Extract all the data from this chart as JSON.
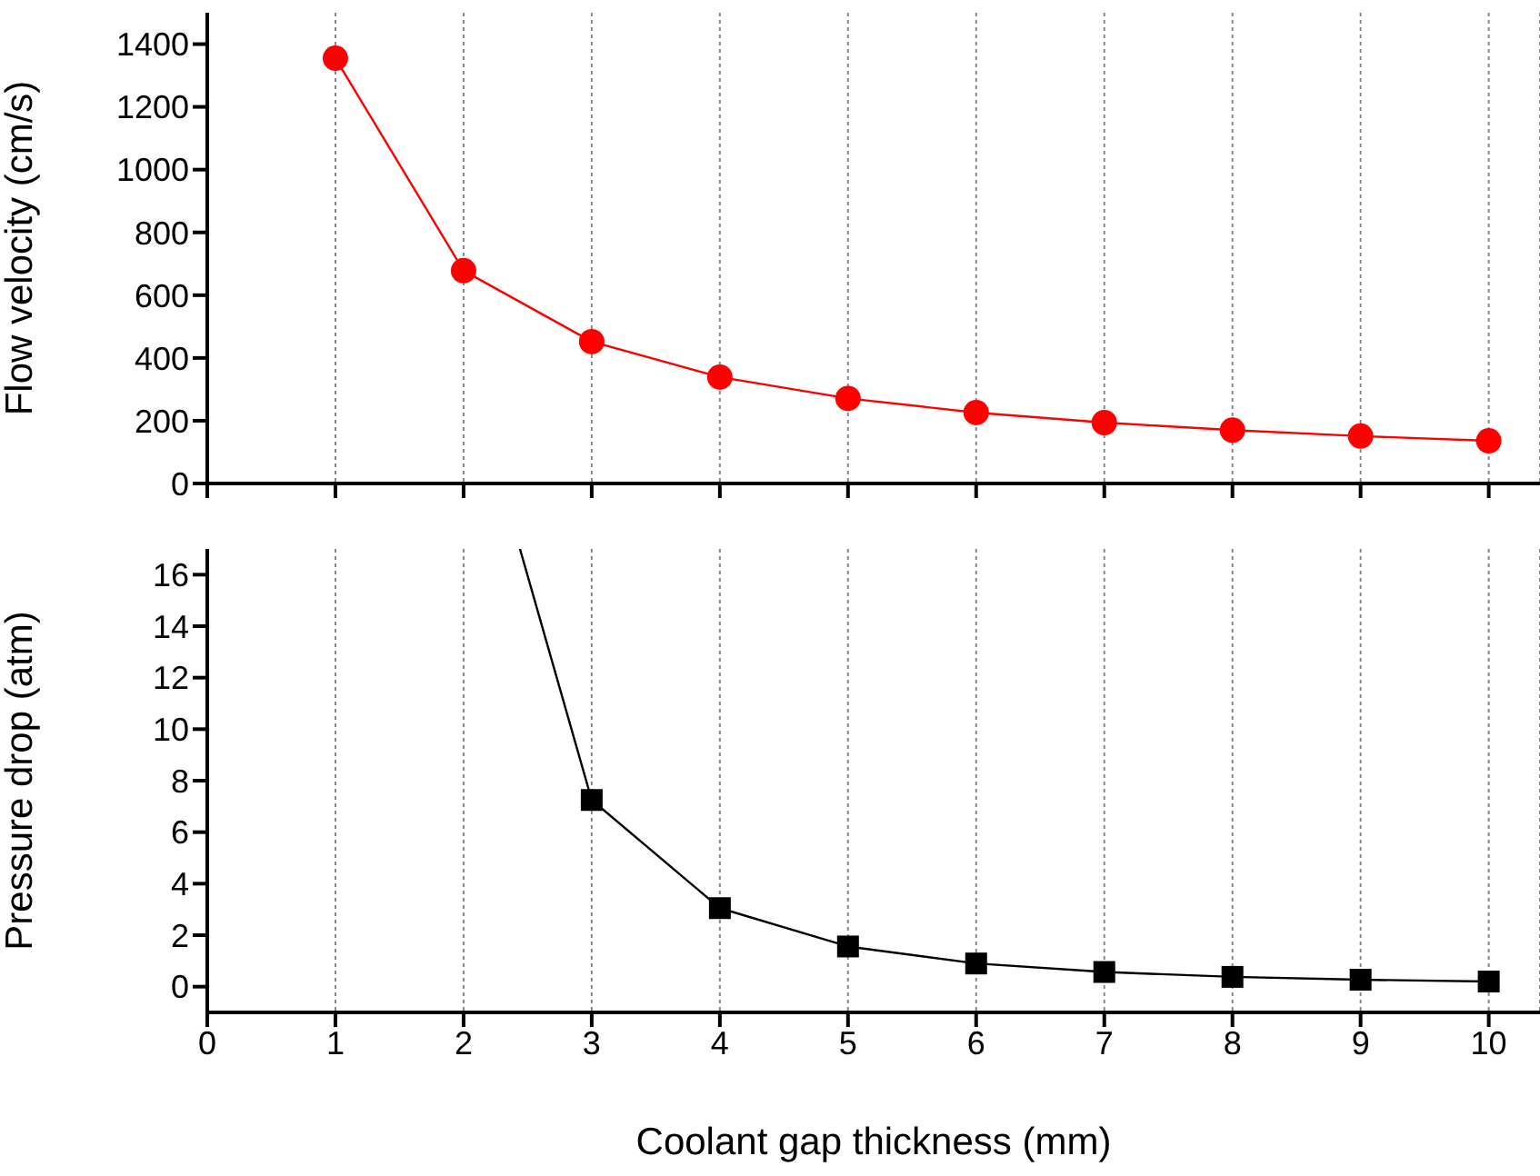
{
  "chart_data": [
    {
      "type": "line",
      "ylabel": "Flow velocity (cm/s)",
      "x": [
        1,
        2,
        3,
        4,
        5,
        6,
        7,
        8,
        9,
        10
      ],
      "xlim": [
        0,
        10.4
      ],
      "xticks": [
        0,
        1,
        2,
        3,
        4,
        5,
        6,
        7,
        8,
        9,
        10
      ],
      "ylim": [
        0,
        1500
      ],
      "yticks": [
        0,
        200,
        400,
        600,
        800,
        1000,
        1200,
        1400
      ],
      "grid": "x",
      "tick_labels": "y",
      "marker": "circle",
      "line_style": "solid",
      "series": [
        {
          "color": "#ff0000",
          "values": [
            1355,
            678,
            452,
            339,
            271,
            226,
            194,
            170,
            151,
            136
          ]
        }
      ]
    },
    {
      "type": "line",
      "xlabel": "Coolant gap thickness (mm)",
      "ylabel": "Pressure drop (atm)",
      "xlim": [
        0,
        10.4
      ],
      "xticks": [
        0,
        1,
        2,
        3,
        4,
        5,
        6,
        7,
        8,
        9,
        10
      ],
      "ylim": [
        -1,
        17
      ],
      "yticks": [
        0,
        2,
        4,
        6,
        8,
        10,
        12,
        14,
        16
      ],
      "grid": "x",
      "marker": "square",
      "line_style": "solid",
      "series": [
        {
          "color": "#000000",
          "x": [
            3,
            4,
            5,
            6,
            7,
            8,
            9,
            10
          ],
          "values": [
            7.25,
            3.05,
            1.56,
            0.9,
            0.57,
            0.38,
            0.27,
            0.2
          ]
        },
        {
          "color": "#000000",
          "x": [
            2.44,
            3
          ],
          "values": [
            17,
            7.25
          ],
          "marker": "none"
        }
      ]
    }
  ]
}
